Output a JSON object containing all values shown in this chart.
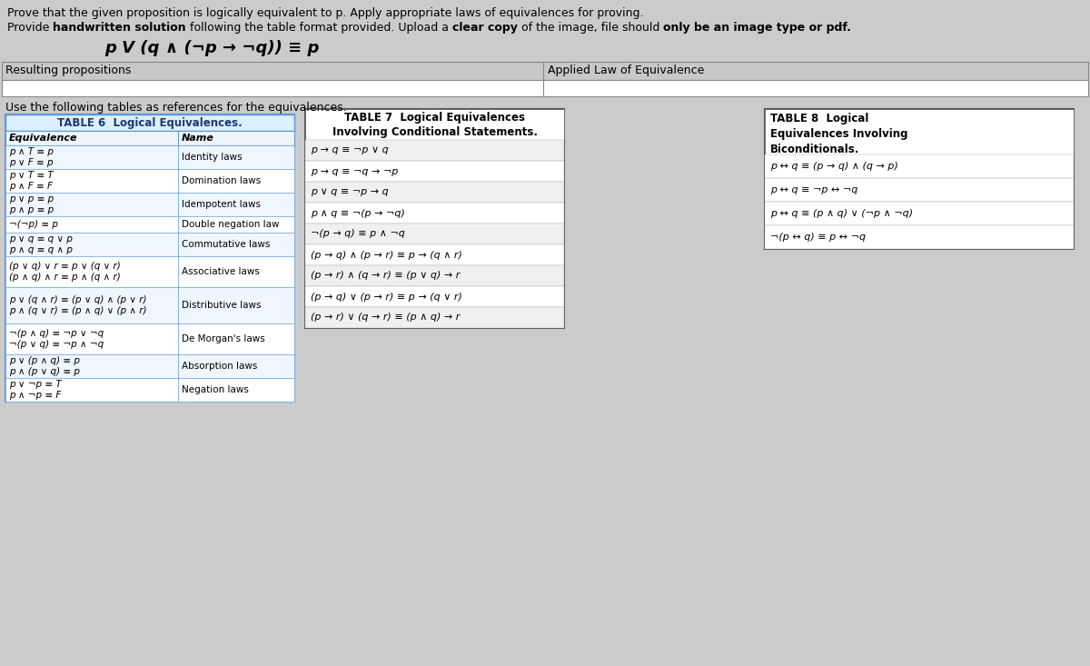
{
  "bg_color": "#cbcbcb",
  "content_bg": "#ffffff",
  "text_color": "#000000",
  "title_line1": "Prove that the given proposition is logically equivalent to p. Apply appropriate laws of equivalences for proving.",
  "title_line2_parts": [
    [
      "Provide ",
      false
    ],
    [
      "handwritten solution",
      true
    ],
    [
      " following the table format provided. Upload a ",
      false
    ],
    [
      "clear copy",
      true
    ],
    [
      " of the image, file should ",
      false
    ],
    [
      "only be an image type or pdf.",
      true
    ]
  ],
  "proposition": "p V (q ∧ (¬p → ¬q)) ≡ p",
  "result_header": "Resulting propositions",
  "applied_header": "Applied Law of Equivalence",
  "use_text": "Use the following tables as references for the equivalences.",
  "table6_title": "TABLE 6  Logical Equivalences.",
  "table6_col1": "Equivalence",
  "table6_col2": "Name",
  "table6_rows": [
    [
      "p ∧ T ≡ p\np ∨ F ≡ p",
      "Identity laws"
    ],
    [
      "p ∨ T ≡ T\np ∧ F ≡ F",
      "Domination laws"
    ],
    [
      "p ∨ p ≡ p\np ∧ p ≡ p",
      "Idempotent laws"
    ],
    [
      "¬(¬p) ≡ p",
      "Double negation law"
    ],
    [
      "p ∨ q ≡ q ∨ p\np ∧ q ≡ q ∧ p",
      "Commutative laws"
    ],
    [
      "(p ∨ q) ∨ r ≡ p ∨ (q ∨ r)\n(p ∧ q) ∧ r ≡ p ∧ (q ∧ r)",
      "Associative laws"
    ],
    [
      "p ∨ (q ∧ r) ≡ (p ∨ q) ∧ (p ∨ r)\np ∧ (q ∨ r) ≡ (p ∧ q) ∨ (p ∧ r)",
      "Distributive laws"
    ],
    [
      "¬(p ∧ q) ≡ ¬p ∨ ¬q\n¬(p ∨ q) ≡ ¬p ∧ ¬q",
      "De Morgan's laws"
    ],
    [
      "p ∨ (p ∧ q) ≡ p\np ∧ (p ∨ q) ≡ p",
      "Absorption laws"
    ],
    [
      "p ∨ ¬p ≡ T\np ∧ ¬p ≡ F",
      "Negation laws"
    ]
  ],
  "table7_title": "TABLE 7  Logical Equivalences\nInvolving Conditional Statements.",
  "table7_rows": [
    "p → q ≡ ¬p ∨ q",
    "p → q ≡ ¬q → ¬p",
    "p ∨ q ≡ ¬p → q",
    "p ∧ q ≡ ¬(p → ¬q)",
    "¬(p → q) ≡ p ∧ ¬q",
    "(p → q) ∧ (p → r) ≡ p → (q ∧ r)",
    "(p → r) ∧ (q → r) ≡ (p ∨ q) → r",
    "(p → q) ∨ (p → r) ≡ p → (q ∨ r)",
    "(p → r) ∨ (q → r) ≡ (p ∧ q) → r"
  ],
  "table8_title": "TABLE 8  Logical\nEquivalences Involving\nBiconditionals.",
  "table8_rows": [
    "p ↔ q ≡ (p → q) ∧ (q → p)",
    "p ↔ q ≡ ¬p ↔ ¬q",
    "p ↔ q ≡ (p ∧ q) ∨ (¬p ∧ ¬q)",
    "¬(p ↔ q) ≡ p ↔ ¬q"
  ]
}
